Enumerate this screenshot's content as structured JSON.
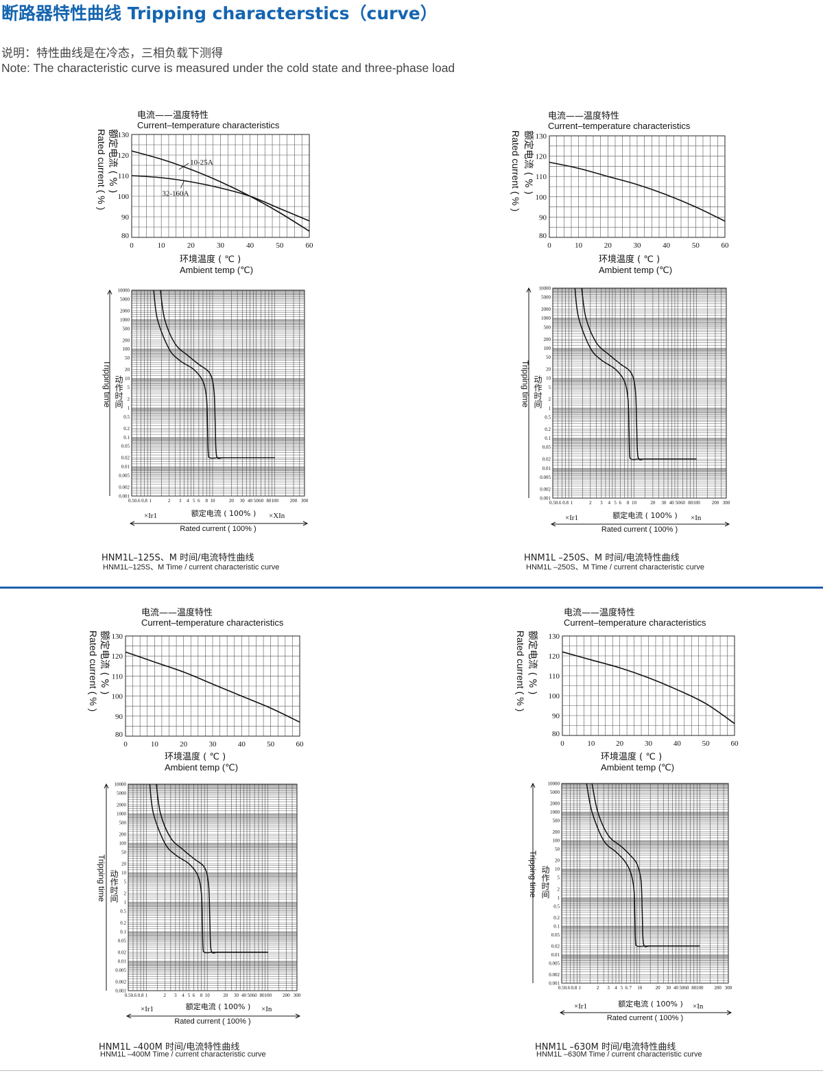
{
  "header": {
    "title": "断路器特性曲线 Tripping characterstics（curve）",
    "note_cn": "说明：特性曲线是在冷态，三相负载下测得",
    "note_en": "Note: The characteristic curve is measured under the cold state and three-phase load"
  },
  "colors": {
    "title": "#1565b0",
    "divider": "#1f5fa8",
    "ink": "#1a1a1a"
  },
  "temp_chart_text": {
    "title_cn": "电流——温度特性",
    "title_en": "Current–temperature characteristics",
    "xlabel_cn": "环境温度 ( ℃ )",
    "xlabel_en": "Ambient temp (℃)",
    "ylabel_cn": "额定电流 ( % )",
    "ylabel_en": "Rated current ( % )"
  },
  "trip_chart_text": {
    "ylabel_cn": "动作时间",
    "ylabel_en": "Tripping time",
    "xlabel_cn": "额定电流 ( 100% )",
    "xlabel_en": "Rated current ( 100% )",
    "x_left": "×Ir1",
    "y_ticks": [
      "10000",
      "5000",
      "2000",
      "1000",
      "500",
      "200",
      "100",
      "50",
      "20",
      "10",
      "5",
      "2",
      "1",
      "0.5",
      "0.2",
      "0.1",
      "0.05",
      "0.02",
      "0.01",
      "0.005",
      "0.002",
      "0.001"
    ]
  },
  "panels": [
    {
      "caption_cn": "HNM1L–125S、M 时间/电流特性曲线",
      "caption_en": "HNM1L–125S、M Time / current characteristic curve",
      "x_right": "×XIn",
      "trip_x_ticks": [
        "0.50.6",
        "0.8",
        "1",
        "2",
        "3",
        "4",
        "5",
        "6",
        "8",
        "10",
        "20",
        "30",
        "40",
        "50",
        "60",
        "80",
        "100",
        "200",
        "300"
      ],
      "chart_data": [
        {
          "type": "line",
          "xlabel": "环境温度 ( ℃ ) / Ambient temp (℃)",
          "ylabel": "额定电流 ( % ) / Rated current ( % )",
          "xlim": [
            0,
            60
          ],
          "ylim": [
            80,
            130
          ],
          "xticks": [
            0,
            10,
            20,
            30,
            40,
            50,
            60
          ],
          "yticks": [
            80,
            90,
            100,
            110,
            120,
            130
          ],
          "grid": true,
          "series": [
            {
              "name": "10-25A",
              "x": [
                0,
                10,
                20,
                30,
                40,
                50,
                60
              ],
              "y": [
                122,
                118,
                113,
                107,
                100,
                92,
                83
              ]
            },
            {
              "name": "32-160A",
              "x": [
                0,
                10,
                20,
                30,
                40,
                50,
                60
              ],
              "y": [
                110,
                109,
                107,
                104,
                100,
                94,
                88
              ]
            }
          ]
        },
        {
          "type": "line",
          "xlabel": "额定电流 ( 100% ) / Rated current ( 100% )",
          "ylabel": "动作时间 / Tripping time",
          "xscale": "log",
          "yscale": "log",
          "xlim": [
            0.5,
            300
          ],
          "ylim": [
            0.001,
            10000
          ],
          "grid": true,
          "series": [
            {
              "x": [
                1.13,
                1.3,
                2,
                3,
                5,
                7,
                8,
                8.3,
                8.5,
                9,
                12,
                20,
                100
              ],
              "y": [
                10000,
                1000,
                100,
                40,
                20,
                8,
                2,
                0.2,
                0.03,
                0.02,
                0.02,
                0.02,
                0.02
              ]
            },
            {
              "x": [
                1.45,
                1.7,
                2.5,
                4,
                6,
                9,
                10.5,
                11,
                11.3,
                12,
                15,
                30,
                100
              ],
              "y": [
                10000,
                1000,
                150,
                60,
                30,
                15,
                4,
                0.3,
                0.04,
                0.02,
                0.02,
                0.02,
                0.02
              ]
            }
          ]
        }
      ]
    },
    {
      "caption_cn": "HNM1L –250S、M 时间/电流特性曲线",
      "caption_en": "HNM1L –250S、M Time / current characteristic curve",
      "x_right": "×In",
      "trip_x_ticks": [
        "0.50.6",
        "0.8",
        "1",
        "2",
        "3",
        "4",
        "5",
        "6",
        "8",
        "10",
        "20",
        "30",
        "40",
        "50",
        "60",
        "80",
        "100",
        "200",
        "300"
      ],
      "chart_data": [
        {
          "type": "line",
          "xlabel": "环境温度 ( ℃ ) / Ambient temp (℃)",
          "ylabel": "额定电流 ( % ) / Rated current ( % )",
          "xlim": [
            0,
            60
          ],
          "ylim": [
            80,
            130
          ],
          "xticks": [
            0,
            10,
            20,
            30,
            40,
            50,
            60
          ],
          "yticks": [
            80,
            90,
            100,
            110,
            120,
            130
          ],
          "grid": true,
          "series": [
            {
              "x": [
                0,
                10,
                20,
                30,
                40,
                50,
                60
              ],
              "y": [
                117,
                114,
                110,
                106,
                101,
                95,
                88
              ]
            }
          ]
        },
        {
          "type": "line",
          "xlabel": "额定电流 ( 100% ) / Rated current ( 100% )",
          "ylabel": "动作时间 / Tripping time",
          "xscale": "log",
          "yscale": "log",
          "xlim": [
            0.5,
            300
          ],
          "ylim": [
            0.001,
            10000
          ],
          "grid": true,
          "series": [
            {
              "x": [
                1.13,
                1.3,
                2,
                3,
                5,
                7,
                8,
                8.3,
                8.5,
                9,
                12,
                20,
                100
              ],
              "y": [
                10000,
                1000,
                100,
                40,
                20,
                8,
                2,
                0.2,
                0.03,
                0.02,
                0.02,
                0.02,
                0.02
              ]
            },
            {
              "x": [
                1.45,
                1.7,
                2.5,
                4,
                6,
                9,
                10.5,
                11,
                11.3,
                12,
                15,
                30,
                100
              ],
              "y": [
                10000,
                1000,
                150,
                60,
                30,
                15,
                4,
                0.3,
                0.04,
                0.02,
                0.02,
                0.02,
                0.02
              ]
            }
          ]
        }
      ]
    },
    {
      "caption_cn": "HNM1L –400M 时间/电流特性曲线",
      "caption_en": "HNM1L –400M Time / current characteristic curve",
      "x_right": "×In",
      "trip_x_ticks": [
        "0.50.6",
        "0.8",
        "1",
        "2",
        "3",
        "4",
        "5",
        "6",
        "8",
        "10",
        "20",
        "30",
        "40",
        "50",
        "60",
        "80",
        "100",
        "200",
        "300"
      ],
      "chart_data": [
        {
          "type": "line",
          "xlabel": "环境温度 ( ℃ ) / Ambient temp (℃)",
          "ylabel": "额定电流 ( % ) / Rated current ( % )",
          "xlim": [
            0,
            60
          ],
          "ylim": [
            80,
            130
          ],
          "xticks": [
            0,
            10,
            20,
            30,
            40,
            50,
            60
          ],
          "yticks": [
            80,
            90,
            100,
            110,
            120,
            130
          ],
          "grid": true,
          "series": [
            {
              "x": [
                0,
                10,
                20,
                30,
                40,
                50,
                60
              ],
              "y": [
                122,
                117,
                112,
                106,
                100,
                94,
                87
              ]
            }
          ]
        },
        {
          "type": "line",
          "xlabel": "额定电流 ( 100% ) / Rated current ( 100% )",
          "ylabel": "动作时间 / Tripping time",
          "xscale": "log",
          "yscale": "log",
          "xlim": [
            0.5,
            300
          ],
          "ylim": [
            0.001,
            10000
          ],
          "grid": true,
          "series": [
            {
              "x": [
                1.13,
                1.3,
                2,
                3,
                5,
                7,
                8,
                8.3,
                8.5,
                9,
                12,
                20,
                100
              ],
              "y": [
                10000,
                1000,
                100,
                40,
                20,
                8,
                2,
                0.2,
                0.03,
                0.02,
                0.02,
                0.02,
                0.02
              ]
            },
            {
              "x": [
                1.45,
                1.7,
                2.5,
                4,
                6,
                9,
                10.5,
                11,
                11.3,
                12,
                15,
                30,
                100
              ],
              "y": [
                10000,
                1000,
                150,
                60,
                30,
                15,
                4,
                0.3,
                0.04,
                0.02,
                0.02,
                0.02,
                0.02
              ]
            }
          ]
        }
      ]
    },
    {
      "caption_cn": "HNM1L –630M 时间/电流特性曲线",
      "caption_en": "HNM1L –630M Time / current characteristic curve",
      "x_right": "×In",
      "trip_x_ticks": [
        "0.50.6",
        "0.8",
        "1",
        "2",
        "3",
        "4",
        "5",
        "6",
        "7",
        "10",
        "20",
        "30",
        "40",
        "50",
        "60",
        "80",
        "100",
        "200",
        "300"
      ],
      "chart_data": [
        {
          "type": "line",
          "xlabel": "环境温度 ( ℃ ) / Ambient temp (℃)",
          "ylabel": "额定电流 ( % ) / Rated current ( % )",
          "xlim": [
            0,
            60
          ],
          "ylim": [
            80,
            130
          ],
          "xticks": [
            0,
            10,
            20,
            30,
            40,
            50,
            60
          ],
          "yticks": [
            80,
            90,
            100,
            110,
            120,
            130
          ],
          "grid": true,
          "series": [
            {
              "x": [
                0,
                10,
                20,
                30,
                40,
                50,
                60
              ],
              "y": [
                122,
                118,
                114,
                109,
                103,
                96,
                86
              ]
            }
          ]
        },
        {
          "type": "line",
          "xlabel": "额定电流 ( 100% ) / Rated current ( 100% )",
          "ylabel": "动作时间 / Tripping time",
          "xscale": "log",
          "yscale": "log",
          "xlim": [
            0.5,
            300
          ],
          "ylim": [
            0.001,
            10000
          ],
          "grid": true,
          "series": [
            {
              "x": [
                1.3,
                1.6,
                2.5,
                4,
                5.5,
                7,
                8,
                8.3,
                8.5,
                9,
                12,
                20,
                100
              ],
              "y": [
                10000,
                1000,
                100,
                40,
                20,
                8,
                2,
                0.2,
                0.03,
                0.02,
                0.02,
                0.02,
                0.02
              ]
            },
            {
              "x": [
                1.6,
                2,
                3,
                5,
                7,
                9,
                10.5,
                11,
                11.3,
                12,
                15,
                30,
                100
              ],
              "y": [
                10000,
                1000,
                150,
                60,
                30,
                15,
                4,
                0.3,
                0.04,
                0.02,
                0.02,
                0.02,
                0.02
              ]
            }
          ]
        }
      ]
    }
  ]
}
